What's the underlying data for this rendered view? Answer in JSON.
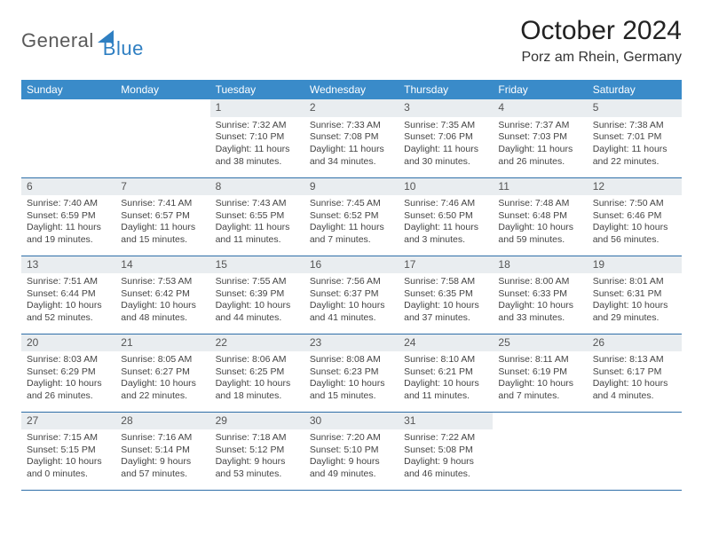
{
  "logo": {
    "part1": "General",
    "part2": "Blue"
  },
  "title": "October 2024",
  "subtitle": "Porz am Rhein, Germany",
  "weekdays": [
    "Sunday",
    "Monday",
    "Tuesday",
    "Wednesday",
    "Thursday",
    "Friday",
    "Saturday"
  ],
  "colors": {
    "header_bg": "#3a8bc9",
    "header_text": "#ffffff",
    "daynum_bg": "#e9edf0",
    "rule": "#2f6fa8",
    "logo_gray": "#5a5a5a",
    "logo_blue": "#2f7fc2",
    "page_bg": "#ffffff"
  },
  "layout": {
    "cols": 7,
    "rows": 5,
    "first_weekday_index": 2
  },
  "days": [
    {
      "n": 1,
      "sunrise": "7:32 AM",
      "sunset": "7:10 PM",
      "dl_h": 11,
      "dl_m": 38
    },
    {
      "n": 2,
      "sunrise": "7:33 AM",
      "sunset": "7:08 PM",
      "dl_h": 11,
      "dl_m": 34
    },
    {
      "n": 3,
      "sunrise": "7:35 AM",
      "sunset": "7:06 PM",
      "dl_h": 11,
      "dl_m": 30
    },
    {
      "n": 4,
      "sunrise": "7:37 AM",
      "sunset": "7:03 PM",
      "dl_h": 11,
      "dl_m": 26
    },
    {
      "n": 5,
      "sunrise": "7:38 AM",
      "sunset": "7:01 PM",
      "dl_h": 11,
      "dl_m": 22
    },
    {
      "n": 6,
      "sunrise": "7:40 AM",
      "sunset": "6:59 PM",
      "dl_h": 11,
      "dl_m": 19
    },
    {
      "n": 7,
      "sunrise": "7:41 AM",
      "sunset": "6:57 PM",
      "dl_h": 11,
      "dl_m": 15
    },
    {
      "n": 8,
      "sunrise": "7:43 AM",
      "sunset": "6:55 PM",
      "dl_h": 11,
      "dl_m": 11
    },
    {
      "n": 9,
      "sunrise": "7:45 AM",
      "sunset": "6:52 PM",
      "dl_h": 11,
      "dl_m": 7
    },
    {
      "n": 10,
      "sunrise": "7:46 AM",
      "sunset": "6:50 PM",
      "dl_h": 11,
      "dl_m": 3
    },
    {
      "n": 11,
      "sunrise": "7:48 AM",
      "sunset": "6:48 PM",
      "dl_h": 10,
      "dl_m": 59
    },
    {
      "n": 12,
      "sunrise": "7:50 AM",
      "sunset": "6:46 PM",
      "dl_h": 10,
      "dl_m": 56
    },
    {
      "n": 13,
      "sunrise": "7:51 AM",
      "sunset": "6:44 PM",
      "dl_h": 10,
      "dl_m": 52
    },
    {
      "n": 14,
      "sunrise": "7:53 AM",
      "sunset": "6:42 PM",
      "dl_h": 10,
      "dl_m": 48
    },
    {
      "n": 15,
      "sunrise": "7:55 AM",
      "sunset": "6:39 PM",
      "dl_h": 10,
      "dl_m": 44
    },
    {
      "n": 16,
      "sunrise": "7:56 AM",
      "sunset": "6:37 PM",
      "dl_h": 10,
      "dl_m": 41
    },
    {
      "n": 17,
      "sunrise": "7:58 AM",
      "sunset": "6:35 PM",
      "dl_h": 10,
      "dl_m": 37
    },
    {
      "n": 18,
      "sunrise": "8:00 AM",
      "sunset": "6:33 PM",
      "dl_h": 10,
      "dl_m": 33
    },
    {
      "n": 19,
      "sunrise": "8:01 AM",
      "sunset": "6:31 PM",
      "dl_h": 10,
      "dl_m": 29
    },
    {
      "n": 20,
      "sunrise": "8:03 AM",
      "sunset": "6:29 PM",
      "dl_h": 10,
      "dl_m": 26
    },
    {
      "n": 21,
      "sunrise": "8:05 AM",
      "sunset": "6:27 PM",
      "dl_h": 10,
      "dl_m": 22
    },
    {
      "n": 22,
      "sunrise": "8:06 AM",
      "sunset": "6:25 PM",
      "dl_h": 10,
      "dl_m": 18
    },
    {
      "n": 23,
      "sunrise": "8:08 AM",
      "sunset": "6:23 PM",
      "dl_h": 10,
      "dl_m": 15
    },
    {
      "n": 24,
      "sunrise": "8:10 AM",
      "sunset": "6:21 PM",
      "dl_h": 10,
      "dl_m": 11
    },
    {
      "n": 25,
      "sunrise": "8:11 AM",
      "sunset": "6:19 PM",
      "dl_h": 10,
      "dl_m": 7
    },
    {
      "n": 26,
      "sunrise": "8:13 AM",
      "sunset": "6:17 PM",
      "dl_h": 10,
      "dl_m": 4
    },
    {
      "n": 27,
      "sunrise": "7:15 AM",
      "sunset": "5:15 PM",
      "dl_h": 10,
      "dl_m": 0
    },
    {
      "n": 28,
      "sunrise": "7:16 AM",
      "sunset": "5:14 PM",
      "dl_h": 9,
      "dl_m": 57
    },
    {
      "n": 29,
      "sunrise": "7:18 AM",
      "sunset": "5:12 PM",
      "dl_h": 9,
      "dl_m": 53
    },
    {
      "n": 30,
      "sunrise": "7:20 AM",
      "sunset": "5:10 PM",
      "dl_h": 9,
      "dl_m": 49
    },
    {
      "n": 31,
      "sunrise": "7:22 AM",
      "sunset": "5:08 PM",
      "dl_h": 9,
      "dl_m": 46
    }
  ]
}
